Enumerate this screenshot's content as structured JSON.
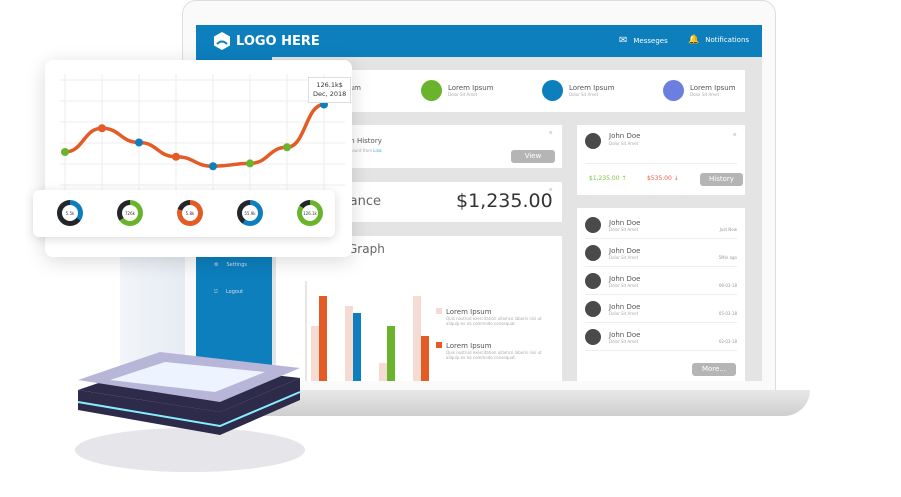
{
  "header": {
    "logo": "LOGO HERE",
    "messages": "Messeges",
    "notifications": "Notifications"
  },
  "sidebar": {
    "items": [
      {
        "label": "Settings",
        "icon": "gear-icon"
      },
      {
        "label": "Logout",
        "icon": "logout-icon"
      }
    ]
  },
  "stats": [
    {
      "title": "Lorem Ipsum",
      "sub": "Dolor Sit Amet",
      "color": "#6ab42d"
    },
    {
      "title": "Lorem Ipsum",
      "sub": "Dolor Sit Amet",
      "color": "#0d7fbd"
    },
    {
      "title": "Lorem Ipsum",
      "sub": "Dolor Sit Amet",
      "color": "#6c7fe0"
    }
  ],
  "stats_partial": "sum",
  "transaction": {
    "title": "on History",
    "sub": "amount from",
    "link": "Lina",
    "button": "View"
  },
  "balance": {
    "label": "lance",
    "value": "$1,235.00"
  },
  "graph": {
    "title": "Graph",
    "legend": [
      {
        "label": "Lorem Ipsum",
        "text": "Quis nostrud exercitation ullamco laboris nisi ut aliquip ex ea commodo consequat.",
        "color": "#f6dbd3"
      },
      {
        "label": "Lorem Ipsum",
        "text": "Quis nostrud exercitation ullamco laboris nisi ut aliquip ex ea commodo consequat.",
        "color": "#e35b25"
      }
    ],
    "bars": [
      [
        5.5,
        8.5
      ],
      [
        7.5,
        6.8
      ],
      [
        1.8,
        5.5
      ],
      [
        8.5,
        4.5
      ]
    ],
    "bar_colors": [
      "#e35b25",
      "#0d7fbd",
      "#6ab42d",
      "#e35b25"
    ],
    "ylim": [
      0,
      10
    ]
  },
  "profile": {
    "name": "John Doe",
    "sub": "Dolor Sit Amet",
    "income": "$1,235.00",
    "expense": "$535.00",
    "button": "History",
    "income_color": "#7dc142",
    "expense_color": "#ef5a4a"
  },
  "list": {
    "items": [
      {
        "name": "John Doe",
        "sub": "Dolor Sit Amet",
        "time": "Just Now"
      },
      {
        "name": "John Doe",
        "sub": "Dolor Sit Amet",
        "time": "5Min ago"
      },
      {
        "name": "John Doe",
        "sub": "Dolor Sit Amet",
        "time": "08-03-18"
      },
      {
        "name": "John Doe",
        "sub": "Dolor Sit Amet",
        "time": "05-03-18"
      },
      {
        "name": "John Doe",
        "sub": "Dolor Sit Amet",
        "time": "02-03-18"
      }
    ],
    "button": "More..."
  },
  "line_chart": {
    "tooltip_value": "126.1k$",
    "tooltip_date": "Dec, 2018",
    "points": [
      40,
      65,
      50,
      35,
      25,
      28,
      45,
      90
    ],
    "point_colors": [
      "#6ab42d",
      "#e35b25",
      "#0d7fbd",
      "#e35b25",
      "#0d7fbd",
      "#6ab42d",
      "#6ab42d",
      "#0d7fbd"
    ],
    "line_color": "#e35b25"
  },
  "donuts": [
    {
      "label": "5.5k",
      "pct": 35,
      "color": "#0d7fbd"
    },
    {
      "label": "726k",
      "pct": 65,
      "color": "#6ab42d"
    },
    {
      "label": "5.8k",
      "pct": 80,
      "color": "#e35b25"
    },
    {
      "label": "55.9k",
      "pct": 60,
      "color": "#0d7fbd"
    },
    {
      "label": "126.1k",
      "pct": 85,
      "color": "#6ab42d"
    }
  ]
}
